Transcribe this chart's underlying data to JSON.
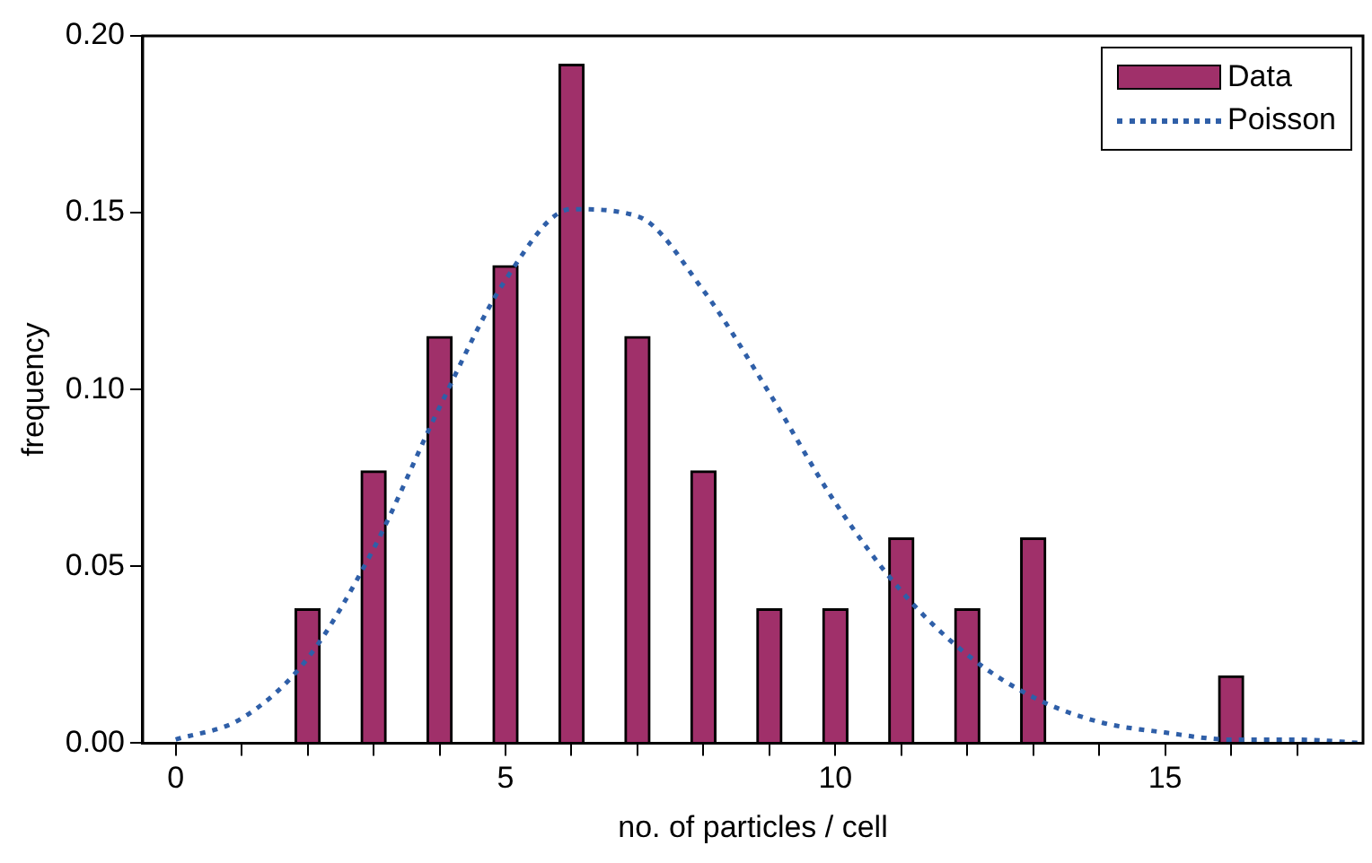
{
  "chart_data": {
    "type": "bar",
    "xlabel": "no. of particles / cell",
    "ylabel": "frequency",
    "xlim": [
      -0.5,
      18
    ],
    "xticks": [
      0,
      {
        "value": 1,
        "label": null
      },
      {
        "value": 2,
        "label": null
      },
      {
        "value": 3,
        "label": null
      },
      {
        "value": 4,
        "label": null
      },
      5,
      {
        "value": 6,
        "label": null
      },
      {
        "value": 7,
        "label": null
      },
      {
        "value": 8,
        "label": null
      },
      {
        "value": 9,
        "label": null
      },
      10,
      {
        "value": 11,
        "label": null
      },
      {
        "value": 12,
        "label": null
      },
      {
        "value": 13,
        "label": null
      },
      {
        "value": 14,
        "label": null
      },
      15,
      {
        "value": 16,
        "label": null
      },
      {
        "value": 17,
        "label": null
      }
    ],
    "ylim": [
      0,
      0.2
    ],
    "yticks": [
      {
        "value": 0,
        "label": "0.00"
      },
      0.05,
      {
        "value": 0.1,
        "label": "0.10"
      },
      0.15,
      {
        "value": 0.2,
        "label": "0.20"
      }
    ],
    "grid": false,
    "legend": "top right",
    "series": [
      {
        "name": "Data",
        "color": "#a0306a",
        "x": [
          2,
          3,
          4,
          5,
          6,
          7,
          8,
          9,
          10,
          11,
          12,
          13,
          16
        ],
        "values": [
          0.038,
          0.077,
          0.115,
          0.135,
          0.192,
          0.115,
          0.077,
          0.038,
          0.038,
          0.058,
          0.038,
          0.058,
          0.019
        ]
      },
      {
        "name": "Poisson",
        "type": "line",
        "color": "#2f5fa8",
        "line_style": "dotted",
        "marker": "none",
        "x": [
          0,
          1,
          2,
          3,
          4,
          5,
          6,
          7,
          8,
          9,
          10,
          11,
          12,
          13,
          14,
          15,
          16,
          17,
          18
        ],
        "values": [
          0.001,
          0.007,
          0.024,
          0.055,
          0.095,
          0.131,
          0.151,
          0.149,
          0.128,
          0.099,
          0.068,
          0.043,
          0.025,
          0.013,
          0.006,
          0.003,
          0.001,
          0.001,
          0.0
        ]
      }
    ]
  }
}
